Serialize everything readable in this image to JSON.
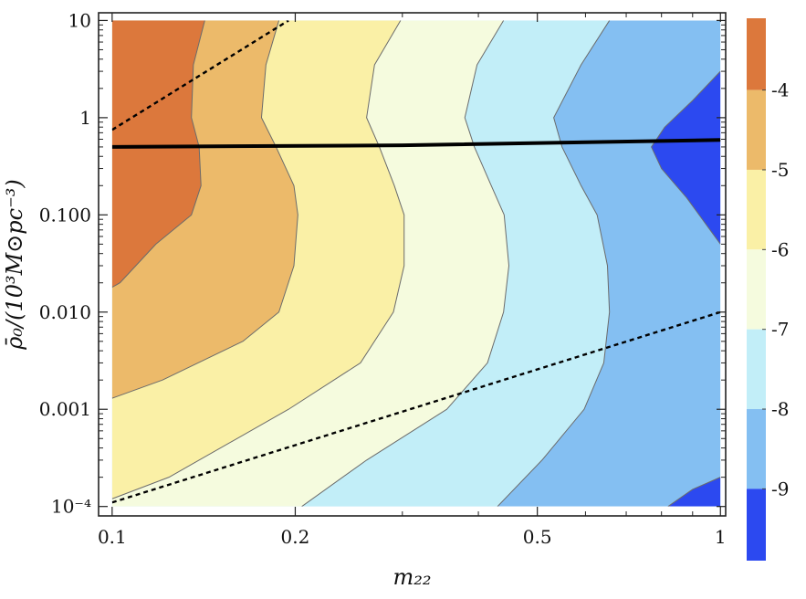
{
  "chart_data": {
    "type": "contour",
    "xlabel": "m₂₂",
    "ylabel": "ρ̄₀/(10³M⊙pc⁻³)",
    "xscale": "log",
    "yscale": "log",
    "xlim": [
      0.095,
      1.02
    ],
    "ylim": [
      8e-05,
      12
    ],
    "xticks": [
      {
        "v": 0.1,
        "label": "0.1"
      },
      {
        "v": 0.2,
        "label": "0.2"
      },
      {
        "v": 0.5,
        "label": "0.5"
      },
      {
        "v": 1,
        "label": "1"
      }
    ],
    "yticks": [
      {
        "v": 0.0001,
        "label": "10⁻⁴"
      },
      {
        "v": 0.001,
        "label": "0.001"
      },
      {
        "v": 0.01,
        "label": "0.010"
      },
      {
        "v": 0.1,
        "label": "0.100"
      },
      {
        "v": 1,
        "label": "1"
      },
      {
        "v": 10,
        "label": "10"
      }
    ],
    "colorbar": {
      "min": -9.9,
      "max": -3.1,
      "levels": [
        {
          "lo": -4,
          "hi": -3.1,
          "color": "#dc783c"
        },
        {
          "lo": -5,
          "hi": -4,
          "color": "#ecba6a"
        },
        {
          "lo": -6,
          "hi": -5,
          "color": "#faf0a6"
        },
        {
          "lo": -7,
          "hi": -6,
          "color": "#f5fbde"
        },
        {
          "lo": -8,
          "hi": -7,
          "color": "#c2eef8"
        },
        {
          "lo": -9,
          "hi": -8,
          "color": "#84bff2"
        },
        {
          "lo": -9.9,
          "hi": -9,
          "color": "#2c49f0"
        }
      ],
      "ticks": [
        {
          "v": -4,
          "label": "-4"
        },
        {
          "v": -5,
          "label": "-5"
        },
        {
          "v": -6,
          "label": "-6"
        },
        {
          "v": -7,
          "label": "-7"
        },
        {
          "v": -8,
          "label": "-8"
        },
        {
          "v": -9,
          "label": "-9"
        }
      ]
    },
    "data_extent": {
      "x": [
        0.1,
        1
      ],
      "y": [
        0.0001,
        10
      ]
    },
    "boundaries": [
      {
        "level": -4,
        "points": [
          [
            0.142,
            10
          ],
          [
            0.136,
            3.5
          ],
          [
            0.135,
            1
          ],
          [
            0.139,
            0.5
          ],
          [
            0.14,
            0.2
          ],
          [
            0.135,
            0.1
          ],
          [
            0.118,
            0.05
          ],
          [
            0.103,
            0.02
          ],
          [
            0.1,
            0.018
          ]
        ]
      },
      {
        "level": -5,
        "points": [
          [
            0.188,
            10
          ],
          [
            0.179,
            3.5
          ],
          [
            0.176,
            1
          ],
          [
            0.186,
            0.5
          ],
          [
            0.199,
            0.2
          ],
          [
            0.202,
            0.1
          ],
          [
            0.199,
            0.03
          ],
          [
            0.188,
            0.01
          ],
          [
            0.164,
            0.005
          ],
          [
            0.121,
            0.002
          ],
          [
            0.1,
            0.0013
          ]
        ]
      },
      {
        "level": -6,
        "points": [
          [
            0.298,
            10
          ],
          [
            0.27,
            3.5
          ],
          [
            0.262,
            1
          ],
          [
            0.275,
            0.5
          ],
          [
            0.291,
            0.2
          ],
          [
            0.302,
            0.1
          ],
          [
            0.302,
            0.03
          ],
          [
            0.29,
            0.01
          ],
          [
            0.256,
            0.003
          ],
          [
            0.195,
            0.001
          ],
          [
            0.124,
            0.0002
          ],
          [
            0.1,
            0.00012
          ]
        ]
      },
      {
        "level": -7,
        "points": [
          [
            0.44,
            10
          ],
          [
            0.398,
            3.5
          ],
          [
            0.38,
            1
          ],
          [
            0.394,
            0.5
          ],
          [
            0.42,
            0.2
          ],
          [
            0.441,
            0.1
          ],
          [
            0.449,
            0.03
          ],
          [
            0.44,
            0.01
          ],
          [
            0.414,
            0.003
          ],
          [
            0.355,
            0.001
          ],
          [
            0.262,
            0.0003
          ],
          [
            0.205,
            0.0001
          ]
        ]
      },
      {
        "level": -8,
        "points": [
          [
            0.657,
            10
          ],
          [
            0.59,
            3.5
          ],
          [
            0.532,
            1
          ],
          [
            0.549,
            0.5
          ],
          [
            0.59,
            0.2
          ],
          [
            0.627,
            0.1
          ],
          [
            0.652,
            0.03
          ],
          [
            0.657,
            0.01
          ],
          [
            0.643,
            0.003
          ],
          [
            0.597,
            0.001
          ],
          [
            0.509,
            0.0003
          ],
          [
            0.43,
            0.0001
          ]
        ]
      },
      {
        "level": -9,
        "points": [
          [
            1.0,
            3.0
          ],
          [
            0.9,
            1.5
          ],
          [
            0.81,
            0.8
          ],
          [
            0.77,
            0.5
          ],
          [
            0.8,
            0.3
          ],
          [
            0.88,
            0.15
          ],
          [
            1.0,
            0.05
          ]
        ]
      },
      {
        "level": -9,
        "points": [
          [
            0.82,
            0.0001
          ],
          [
            0.9,
            0.00015
          ],
          [
            1.0,
            0.0002
          ]
        ]
      }
    ],
    "lines": [
      {
        "style": "solid",
        "points": [
          [
            0.1,
            0.5
          ],
          [
            0.3,
            0.52
          ],
          [
            1.0,
            0.59
          ]
        ]
      },
      {
        "style": "dashed",
        "points": [
          [
            0.1,
            0.75
          ],
          [
            0.195,
            10
          ]
        ]
      },
      {
        "style": "dashed",
        "points": [
          [
            0.1,
            0.00011
          ],
          [
            1.0,
            0.01
          ]
        ]
      }
    ]
  }
}
